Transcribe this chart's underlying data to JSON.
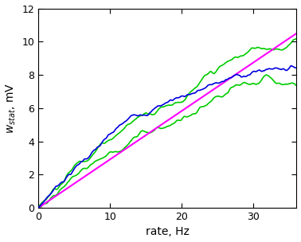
{
  "title": "",
  "xlabel": "rate, Hz",
  "ylabel": "$w_{stat}$, mV",
  "xlim": [
    0,
    36
  ],
  "ylim": [
    0,
    12
  ],
  "xticks": [
    0,
    10,
    20,
    30
  ],
  "yticks": [
    0,
    2,
    4,
    6,
    8,
    10,
    12
  ],
  "blue_color": "#0000dd",
  "green_color": "#00cc00",
  "magenta_color": "#ff00ff",
  "bg_color": "#ffffff",
  "noise_seed": 7,
  "rate_max": 36,
  "num_points": 360
}
